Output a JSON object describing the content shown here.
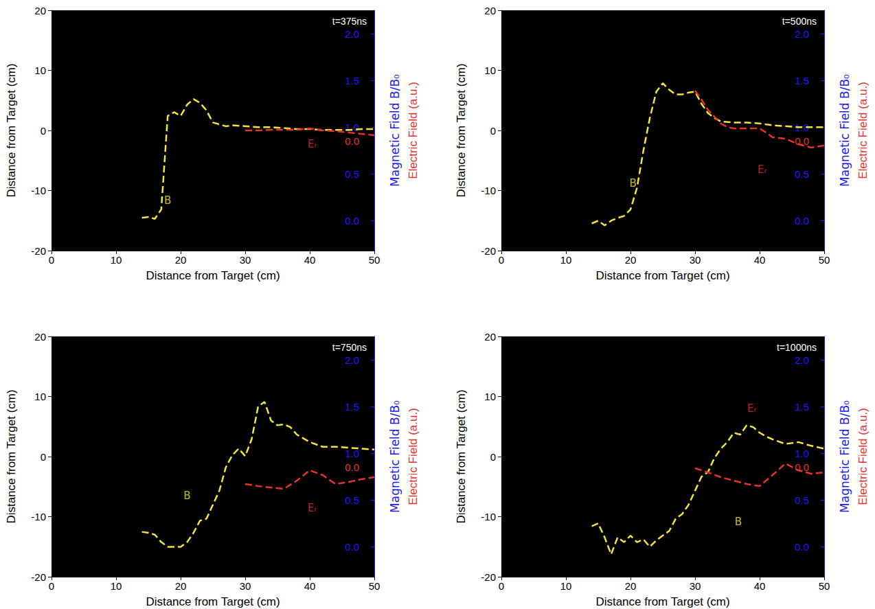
{
  "chart_data": [
    {
      "type": "line",
      "title": "t=375ns",
      "xlabel": "Distance from Target (cm)",
      "ylabel": "Distance from Target (cm)",
      "y2label": "Magnetic Field B/B₀",
      "y3label": "Electric Field (a.u.)",
      "xlim": [
        0,
        50
      ],
      "xticks": [
        0,
        10,
        20,
        30,
        40,
        50
      ],
      "ylim": [
        -20,
        20
      ],
      "yticks": [
        -20,
        -10,
        0,
        10,
        20
      ],
      "y2lim": [
        -0.32,
        2.25
      ],
      "y2ticks": [
        {
          "value": 0,
          "label": "0.0"
        },
        0.5,
        {
          "value": 1,
          "label": "1.0"
        },
        1.5,
        {
          "value": 2,
          "label": "2.0"
        }
      ],
      "y3lim": [
        -1.6,
        1.9
      ],
      "y3ticks": [
        {
          "value": 0,
          "label": "0.0"
        }
      ],
      "grid": false,
      "series": [
        {
          "name": "B",
          "color": "#f5e43a",
          "line_style": "dashed",
          "axis": "y2",
          "x": [
            14,
            15,
            16,
            17,
            18,
            19,
            20,
            21,
            22,
            23,
            24,
            25,
            26,
            27,
            28,
            30,
            32,
            34,
            36,
            38,
            40,
            42,
            44,
            46,
            48,
            50
          ],
          "values": [
            0.03,
            0.04,
            0.02,
            0.12,
            1.12,
            1.16,
            1.12,
            1.24,
            1.3,
            1.26,
            1.18,
            1.05,
            1.03,
            1.01,
            1.02,
            1.01,
            1.0,
            1.0,
            0.99,
            0.98,
            0.98,
            0.97,
            0.97,
            0.97,
            0.98,
            0.98
          ],
          "annotation": {
            "x": 18,
            "y": -11.7
          }
        },
        {
          "name": "Eᵣ",
          "color": "#e8322a",
          "line_style": "dashed",
          "axis": "y3",
          "x": [
            30,
            32,
            34,
            36,
            38,
            40,
            42,
            44,
            46,
            48,
            50
          ],
          "values": [
            0.15,
            0.15,
            0.16,
            0.16,
            0.16,
            0.18,
            0.15,
            0.14,
            0.12,
            0.1,
            0.08
          ],
          "annotation": {
            "x": 40.4,
            "y": -2.3
          }
        }
      ]
    },
    {
      "type": "line",
      "title": "t=500ns",
      "xlabel": "Distance from Target (cm)",
      "ylabel": "Distance from Target (cm)",
      "y2label": "Magnetic Field B/B₀",
      "y3label": "Electric Field (a.u.)",
      "xlim": [
        0,
        50
      ],
      "xticks": [
        0,
        10,
        20,
        30,
        40,
        50
      ],
      "ylim": [
        -20,
        20
      ],
      "yticks": [
        -20,
        -10,
        0,
        10,
        20
      ],
      "y2lim": [
        -0.32,
        2.25
      ],
      "y2ticks": [
        {
          "value": 0,
          "label": "0.0"
        },
        0.5,
        {
          "value": 1,
          "label": "1.0"
        },
        1.5,
        {
          "value": 2,
          "label": "2.0"
        }
      ],
      "y3lim": [
        -1.6,
        1.9
      ],
      "y3ticks": [
        {
          "value": 0,
          "label": "0.0"
        }
      ],
      "grid": false,
      "series": [
        {
          "name": "B",
          "color": "#f5e43a",
          "line_style": "dashed",
          "axis": "y2",
          "x": [
            14,
            15,
            16,
            17,
            18,
            19,
            20,
            21,
            22,
            23,
            24,
            25,
            26,
            27,
            28,
            29,
            30,
            31,
            32,
            33,
            34,
            36,
            38,
            40,
            42,
            44,
            46,
            48,
            50
          ],
          "values": [
            -0.03,
            0.0,
            -0.05,
            0.0,
            0.03,
            0.05,
            0.12,
            0.35,
            0.75,
            1.1,
            1.38,
            1.47,
            1.4,
            1.35,
            1.35,
            1.37,
            1.38,
            1.25,
            1.15,
            1.1,
            1.06,
            1.05,
            1.05,
            1.04,
            1.02,
            1.01,
            1.0,
            1.0,
            1.0
          ],
          "annotation": {
            "x": 20.4,
            "y": -8.8
          }
        },
        {
          "name": "Eᵣ",
          "color": "#e8322a",
          "line_style": "dashed",
          "axis": "y3",
          "x": [
            30,
            31,
            32,
            33,
            34,
            35,
            36,
            38,
            40,
            41,
            42,
            44,
            46,
            48,
            50
          ],
          "values": [
            0.73,
            0.6,
            0.45,
            0.35,
            0.25,
            0.2,
            0.18,
            0.18,
            0.18,
            0.12,
            0.05,
            0.03,
            -0.05,
            -0.1,
            -0.07
          ],
          "annotation": {
            "x": 40.4,
            "y": -6.5
          }
        }
      ]
    },
    {
      "type": "line",
      "title": "t=750ns",
      "xlabel": "Distance from Target (cm)",
      "ylabel": "Distance from Target (cm)",
      "y2label": "Magnetic Field B/B₀",
      "y3label": "Electric Field (a.u.)",
      "xlim": [
        0,
        50
      ],
      "xticks": [
        0,
        10,
        20,
        30,
        40,
        50
      ],
      "ylim": [
        -20,
        20
      ],
      "yticks": [
        -20,
        -10,
        0,
        10,
        20
      ],
      "y2lim": [
        -0.32,
        2.25
      ],
      "y2ticks": [
        {
          "value": 0,
          "label": "0.0"
        },
        0.5,
        {
          "value": 1,
          "label": "1.0"
        },
        1.5,
        {
          "value": 2,
          "label": "2.0"
        }
      ],
      "y3lim": [
        -1.6,
        1.9
      ],
      "y3ticks": [
        {
          "value": 0,
          "label": "0.0"
        }
      ],
      "grid": false,
      "series": [
        {
          "name": "B",
          "color": "#f5e43a",
          "line_style": "dashed",
          "axis": "y2",
          "x": [
            14,
            15,
            16,
            17,
            18,
            19,
            20,
            21,
            22,
            23,
            24,
            25,
            26,
            27,
            28,
            29,
            30,
            31,
            32,
            33,
            34,
            35,
            36,
            37,
            38,
            40,
            42,
            44,
            46,
            48,
            50
          ],
          "values": [
            0.16,
            0.15,
            0.13,
            0.05,
            0.0,
            0.0,
            0.0,
            0.05,
            0.15,
            0.28,
            0.3,
            0.45,
            0.6,
            0.85,
            0.98,
            1.05,
            0.97,
            1.15,
            1.5,
            1.55,
            1.35,
            1.3,
            1.31,
            1.28,
            1.2,
            1.12,
            1.07,
            1.07,
            1.06,
            1.05,
            1.04
          ],
          "annotation": {
            "x": 21,
            "y": -6.5
          }
        },
        {
          "name": "Eᵣ",
          "color": "#e8322a",
          "line_style": "dashed",
          "axis": "y3",
          "x": [
            30,
            32,
            34,
            36,
            38,
            40,
            42,
            44,
            46,
            48,
            50
          ],
          "values": [
            -0.25,
            -0.28,
            -0.3,
            -0.32,
            -0.2,
            -0.05,
            -0.12,
            -0.25,
            -0.22,
            -0.18,
            -0.15
          ],
          "annotation": {
            "x": 40.4,
            "y": -8.6
          }
        }
      ]
    },
    {
      "type": "line",
      "title": "t=1000ns",
      "xlabel": "Distance from Target (cm)",
      "ylabel": "Distance from Target (cm)",
      "y2label": "Magnetic Field B/B₀",
      "y3label": "Electric Field (a.u.)",
      "xlim": [
        0,
        50
      ],
      "xticks": [
        0,
        10,
        20,
        30,
        40,
        50
      ],
      "ylim": [
        -20,
        20
      ],
      "yticks": [
        -20,
        -10,
        0,
        10,
        20
      ],
      "y2lim": [
        -0.32,
        2.25
      ],
      "y2ticks": [
        {
          "value": 0,
          "label": "0.0"
        },
        0.5,
        {
          "value": 1,
          "label": "1.0"
        },
        1.5,
        {
          "value": 2,
          "label": "2.0"
        }
      ],
      "y3lim": [
        -1.6,
        1.9
      ],
      "y3ticks": [
        {
          "value": 0,
          "label": "0.0"
        }
      ],
      "grid": false,
      "series": [
        {
          "name": "B",
          "color": "#f5e43a",
          "line_style": "dashed",
          "axis": "y2",
          "x": [
            14,
            15,
            16,
            17,
            18,
            19,
            20,
            21,
            22,
            23,
            24,
            25,
            26,
            27,
            28,
            29,
            30,
            31,
            32,
            33,
            34,
            35,
            36,
            37,
            38,
            39,
            40,
            41,
            42,
            44,
            46,
            48,
            50
          ],
          "values": [
            0.22,
            0.25,
            0.1,
            -0.08,
            0.1,
            0.05,
            0.12,
            0.05,
            0.08,
            0.0,
            0.07,
            0.12,
            0.17,
            0.3,
            0.35,
            0.45,
            0.6,
            0.75,
            0.8,
            0.95,
            1.05,
            1.12,
            1.22,
            1.2,
            1.3,
            1.28,
            1.22,
            1.18,
            1.15,
            1.1,
            1.12,
            1.08,
            1.05
          ],
          "annotation": {
            "x": 36.7,
            "y": -10.9
          }
        },
        {
          "name": "Eᵣ",
          "color": "#e8322a",
          "line_style": "dashed",
          "axis": "y3",
          "x": [
            30,
            32,
            34,
            36,
            38,
            40,
            42,
            44,
            46,
            48,
            50
          ],
          "values": [
            -0.02,
            -0.08,
            -0.15,
            -0.2,
            -0.25,
            -0.28,
            -0.12,
            0.05,
            -0.05,
            -0.1,
            -0.08
          ],
          "annotation": {
            "x": 38.8,
            "y": 8.0
          }
        }
      ]
    }
  ]
}
